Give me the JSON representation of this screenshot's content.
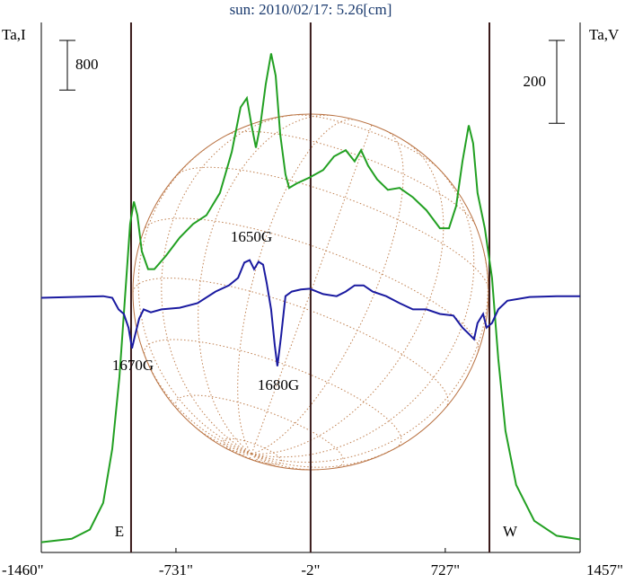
{
  "chart_data": {
    "type": "line",
    "title": "sun: 2010/02/17: 5.26[cm]",
    "xlim": [
      -1460,
      1457
    ],
    "xticks": [
      {
        "value": -1460,
        "label": "-1460\""
      },
      {
        "value": -731,
        "label": "-731\""
      },
      {
        "value": -2,
        "label": "-2\""
      },
      {
        "value": 727,
        "label": "727\""
      },
      {
        "value": 1457,
        "label": "1457\""
      }
    ],
    "ylim": [
      -150,
      8400
    ],
    "y2lim": [
      -615,
      665
    ],
    "vertical_lines": [
      -974,
      -2,
      966
    ],
    "scale_bars": [
      {
        "value": 800,
        "axis": "y"
      },
      {
        "value": 200,
        "axis": "y2"
      }
    ],
    "annotations": [
      "1650G",
      "1670G",
      "1680G",
      "E",
      "W"
    ],
    "series": [
      {
        "name": "Ta,I",
        "color": "#22a022",
        "x": [
          -1460,
          -1295,
          -1197,
          -1125,
          -1076,
          -1037,
          -1003,
          -979,
          -959,
          -940,
          -916,
          -882,
          -848,
          -784,
          -711,
          -638,
          -566,
          -493,
          -429,
          -381,
          -347,
          -322,
          -298,
          -274,
          -245,
          -216,
          -191,
          -167,
          -138,
          -118,
          -79,
          -7,
          66,
          125,
          188,
          236,
          271,
          309,
          358,
          416,
          480,
          552,
          625,
          698,
          747,
          786,
          820,
          854,
          878,
          902,
          941,
          980,
          1014,
          1053,
          1111,
          1209,
          1330,
          1457
        ],
        "values": [
          15,
          70,
          220,
          650,
          1520,
          2680,
          4130,
          5150,
          5510,
          5290,
          4710,
          4420,
          4420,
          4640,
          4930,
          5150,
          5290,
          5650,
          6310,
          7030,
          7180,
          6740,
          6380,
          6740,
          7400,
          7900,
          7540,
          6600,
          5950,
          5730,
          5800,
          5900,
          6020,
          6240,
          6340,
          6160,
          6340,
          6090,
          5870,
          5700,
          5730,
          5580,
          5370,
          5080,
          5080,
          5440,
          6160,
          6740,
          6450,
          5650,
          5080,
          4280,
          2970,
          1810,
          940,
          360,
          120,
          60
        ]
      },
      {
        "name": "Ta,V",
        "color": "#1a1aa0",
        "axis": "y2",
        "x": [
          -1460,
          -1295,
          -1125,
          -1076,
          -1042,
          -1013,
          -988,
          -969,
          -954,
          -930,
          -906,
          -867,
          -809,
          -711,
          -614,
          -517,
          -444,
          -395,
          -361,
          -332,
          -308,
          -284,
          -259,
          -240,
          -216,
          -196,
          -182,
          -162,
          -138,
          -104,
          -55,
          -7,
          66,
          139,
          188,
          236,
          285,
          334,
          407,
          480,
          552,
          625,
          698,
          771,
          820,
          854,
          883,
          902,
          932,
          951,
          980,
          1014,
          1063,
          1184,
          1330,
          1457
        ],
        "values": [
          0,
          2,
          4,
          0,
          -28,
          -39,
          -72,
          -122,
          -93,
          -50,
          -28,
          -35,
          -28,
          -24,
          -13,
          15,
          30,
          48,
          85,
          91,
          69,
          87,
          80,
          37,
          -28,
          -115,
          -165,
          -93,
          4,
          15,
          20,
          22,
          9,
          4,
          15,
          30,
          30,
          15,
          4,
          -13,
          -28,
          -28,
          -39,
          -43,
          -72,
          -87,
          -100,
          -61,
          -39,
          -72,
          -61,
          -28,
          -7,
          2,
          4,
          4
        ]
      }
    ]
  }
}
